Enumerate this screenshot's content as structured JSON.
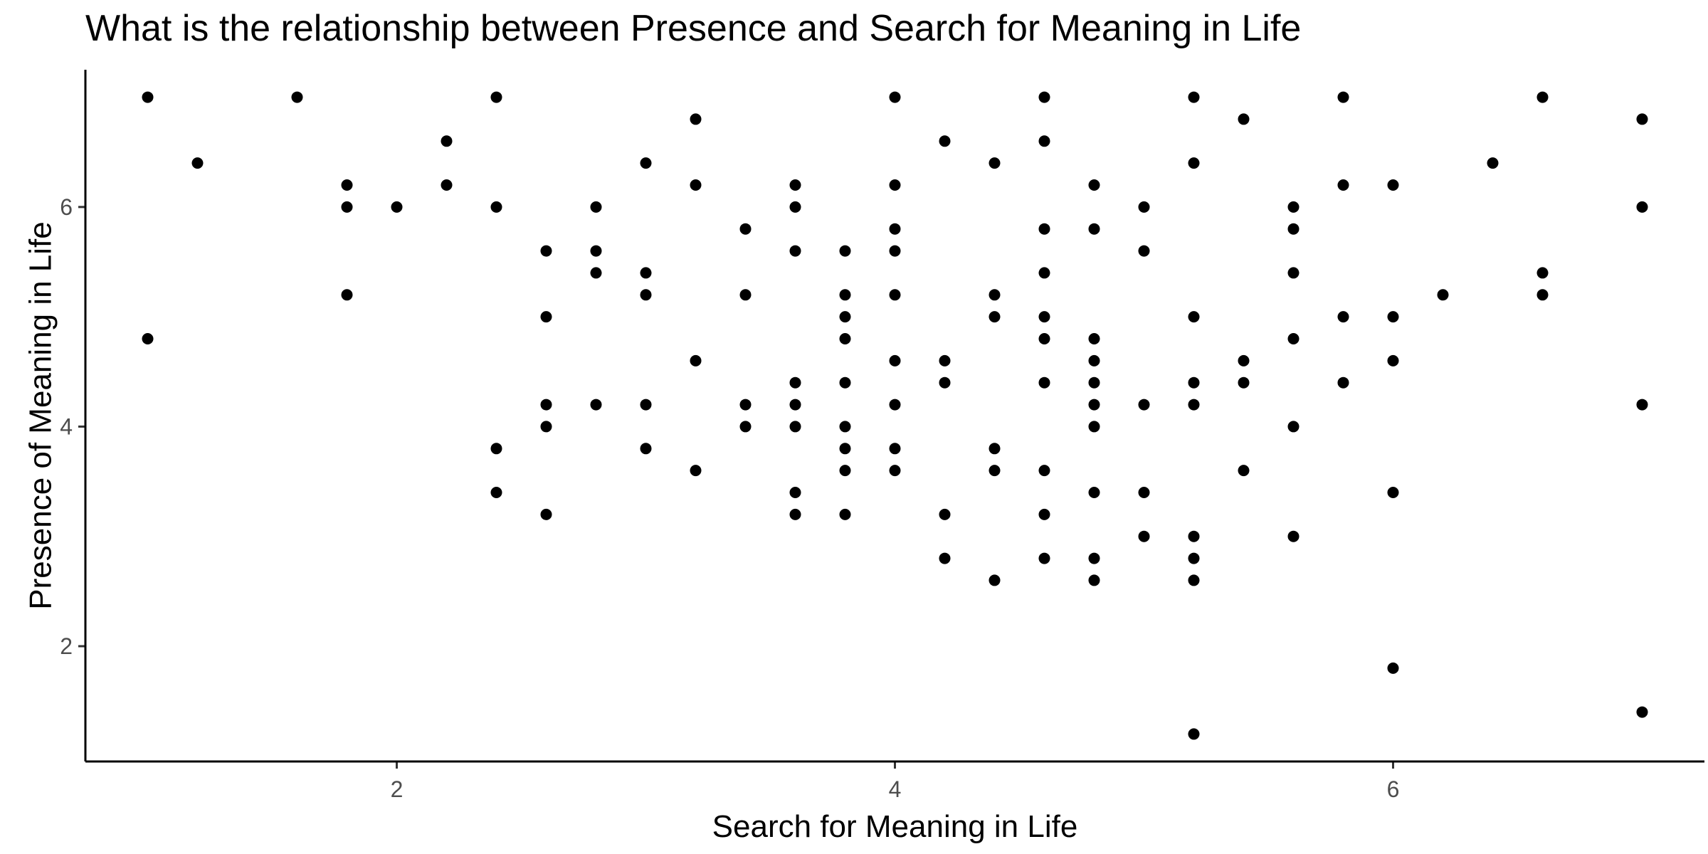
{
  "chart_data": {
    "type": "scatter",
    "title": "What is the relationship between Presence and Search for Meaning in Life",
    "xlabel": "Search for Meaning in Life",
    "ylabel": "Presence of Meaning in Life",
    "xlim": [
      0.75,
      7.25
    ],
    "ylim": [
      0.95,
      7.25
    ],
    "xticks": [
      2,
      4,
      6
    ],
    "yticks": [
      2,
      4,
      6
    ],
    "grid": false,
    "colors": {
      "point": "#000000",
      "axis": "#000000",
      "tick_label": "#4d4d4d"
    },
    "points": [
      {
        "x": 1.0,
        "y": 7.0
      },
      {
        "x": 1.0,
        "y": 4.8
      },
      {
        "x": 1.2,
        "y": 6.4
      },
      {
        "x": 1.6,
        "y": 7.0
      },
      {
        "x": 1.8,
        "y": 6.2
      },
      {
        "x": 1.8,
        "y": 6.0
      },
      {
        "x": 1.8,
        "y": 5.2
      },
      {
        "x": 2.0,
        "y": 6.0
      },
      {
        "x": 2.2,
        "y": 6.6
      },
      {
        "x": 2.2,
        "y": 6.2
      },
      {
        "x": 2.4,
        "y": 7.0
      },
      {
        "x": 2.4,
        "y": 6.0
      },
      {
        "x": 2.4,
        "y": 3.8
      },
      {
        "x": 2.4,
        "y": 3.4
      },
      {
        "x": 2.6,
        "y": 5.6
      },
      {
        "x": 2.6,
        "y": 5.0
      },
      {
        "x": 2.6,
        "y": 4.2
      },
      {
        "x": 2.6,
        "y": 4.0
      },
      {
        "x": 2.6,
        "y": 3.2
      },
      {
        "x": 2.8,
        "y": 6.0
      },
      {
        "x": 2.8,
        "y": 5.6
      },
      {
        "x": 2.8,
        "y": 5.4
      },
      {
        "x": 2.8,
        "y": 4.2
      },
      {
        "x": 3.0,
        "y": 6.4
      },
      {
        "x": 3.0,
        "y": 5.4
      },
      {
        "x": 3.0,
        "y": 5.2
      },
      {
        "x": 3.0,
        "y": 4.2
      },
      {
        "x": 3.0,
        "y": 3.8
      },
      {
        "x": 3.2,
        "y": 6.8
      },
      {
        "x": 3.2,
        "y": 6.2
      },
      {
        "x": 3.2,
        "y": 4.6
      },
      {
        "x": 3.2,
        "y": 3.6
      },
      {
        "x": 3.4,
        "y": 5.8
      },
      {
        "x": 3.4,
        "y": 5.2
      },
      {
        "x": 3.4,
        "y": 4.2
      },
      {
        "x": 3.4,
        "y": 4.0
      },
      {
        "x": 3.6,
        "y": 6.2
      },
      {
        "x": 3.6,
        "y": 6.0
      },
      {
        "x": 3.6,
        "y": 5.6
      },
      {
        "x": 3.6,
        "y": 4.4
      },
      {
        "x": 3.6,
        "y": 4.2
      },
      {
        "x": 3.6,
        "y": 4.0
      },
      {
        "x": 3.6,
        "y": 3.4
      },
      {
        "x": 3.6,
        "y": 3.2
      },
      {
        "x": 3.8,
        "y": 5.6
      },
      {
        "x": 3.8,
        "y": 5.2
      },
      {
        "x": 3.8,
        "y": 5.0
      },
      {
        "x": 3.8,
        "y": 4.8
      },
      {
        "x": 3.8,
        "y": 4.4
      },
      {
        "x": 3.8,
        "y": 4.0
      },
      {
        "x": 3.8,
        "y": 3.8
      },
      {
        "x": 3.8,
        "y": 3.6
      },
      {
        "x": 3.8,
        "y": 3.2
      },
      {
        "x": 4.0,
        "y": 7.0
      },
      {
        "x": 4.0,
        "y": 6.2
      },
      {
        "x": 4.0,
        "y": 5.8
      },
      {
        "x": 4.0,
        "y": 5.6
      },
      {
        "x": 4.0,
        "y": 5.2
      },
      {
        "x": 4.0,
        "y": 4.6
      },
      {
        "x": 4.0,
        "y": 4.2
      },
      {
        "x": 4.0,
        "y": 3.8
      },
      {
        "x": 4.0,
        "y": 3.6
      },
      {
        "x": 4.2,
        "y": 6.6
      },
      {
        "x": 4.2,
        "y": 4.6
      },
      {
        "x": 4.2,
        "y": 4.4
      },
      {
        "x": 4.2,
        "y": 3.2
      },
      {
        "x": 4.2,
        "y": 2.8
      },
      {
        "x": 4.4,
        "y": 6.4
      },
      {
        "x": 4.4,
        "y": 5.2
      },
      {
        "x": 4.4,
        "y": 5.0
      },
      {
        "x": 4.4,
        "y": 3.8
      },
      {
        "x": 4.4,
        "y": 3.6
      },
      {
        "x": 4.4,
        "y": 2.6
      },
      {
        "x": 4.6,
        "y": 7.0
      },
      {
        "x": 4.6,
        "y": 6.6
      },
      {
        "x": 4.6,
        "y": 5.8
      },
      {
        "x": 4.6,
        "y": 5.4
      },
      {
        "x": 4.6,
        "y": 5.0
      },
      {
        "x": 4.6,
        "y": 4.8
      },
      {
        "x": 4.6,
        "y": 4.4
      },
      {
        "x": 4.6,
        "y": 3.6
      },
      {
        "x": 4.6,
        "y": 3.2
      },
      {
        "x": 4.6,
        "y": 2.8
      },
      {
        "x": 4.8,
        "y": 6.2
      },
      {
        "x": 4.8,
        "y": 5.8
      },
      {
        "x": 4.8,
        "y": 4.8
      },
      {
        "x": 4.8,
        "y": 4.6
      },
      {
        "x": 4.8,
        "y": 4.4
      },
      {
        "x": 4.8,
        "y": 4.2
      },
      {
        "x": 4.8,
        "y": 4.0
      },
      {
        "x": 4.8,
        "y": 3.4
      },
      {
        "x": 4.8,
        "y": 2.8
      },
      {
        "x": 4.8,
        "y": 2.6
      },
      {
        "x": 5.0,
        "y": 6.0
      },
      {
        "x": 5.0,
        "y": 5.6
      },
      {
        "x": 5.0,
        "y": 4.2
      },
      {
        "x": 5.0,
        "y": 3.4
      },
      {
        "x": 5.0,
        "y": 3.0
      },
      {
        "x": 5.2,
        "y": 7.0
      },
      {
        "x": 5.2,
        "y": 6.4
      },
      {
        "x": 5.2,
        "y": 5.0
      },
      {
        "x": 5.2,
        "y": 4.4
      },
      {
        "x": 5.2,
        "y": 4.2
      },
      {
        "x": 5.2,
        "y": 3.0
      },
      {
        "x": 5.2,
        "y": 2.8
      },
      {
        "x": 5.2,
        "y": 2.6
      },
      {
        "x": 5.2,
        "y": 1.2
      },
      {
        "x": 5.4,
        "y": 6.8
      },
      {
        "x": 5.4,
        "y": 4.6
      },
      {
        "x": 5.4,
        "y": 4.4
      },
      {
        "x": 5.4,
        "y": 3.6
      },
      {
        "x": 5.6,
        "y": 6.0
      },
      {
        "x": 5.6,
        "y": 5.8
      },
      {
        "x": 5.6,
        "y": 5.4
      },
      {
        "x": 5.6,
        "y": 4.8
      },
      {
        "x": 5.6,
        "y": 4.0
      },
      {
        "x": 5.6,
        "y": 3.0
      },
      {
        "x": 5.8,
        "y": 7.0
      },
      {
        "x": 5.8,
        "y": 6.2
      },
      {
        "x": 5.8,
        "y": 5.0
      },
      {
        "x": 5.8,
        "y": 4.4
      },
      {
        "x": 6.0,
        "y": 6.2
      },
      {
        "x": 6.0,
        "y": 5.0
      },
      {
        "x": 6.0,
        "y": 4.6
      },
      {
        "x": 6.0,
        "y": 3.4
      },
      {
        "x": 6.0,
        "y": 1.8
      },
      {
        "x": 6.2,
        "y": 5.2
      },
      {
        "x": 6.4,
        "y": 6.4
      },
      {
        "x": 6.6,
        "y": 7.0
      },
      {
        "x": 6.6,
        "y": 5.4
      },
      {
        "x": 6.6,
        "y": 5.2
      },
      {
        "x": 7.0,
        "y": 6.8
      },
      {
        "x": 7.0,
        "y": 6.0
      },
      {
        "x": 7.0,
        "y": 4.2
      },
      {
        "x": 7.0,
        "y": 1.4
      }
    ]
  }
}
